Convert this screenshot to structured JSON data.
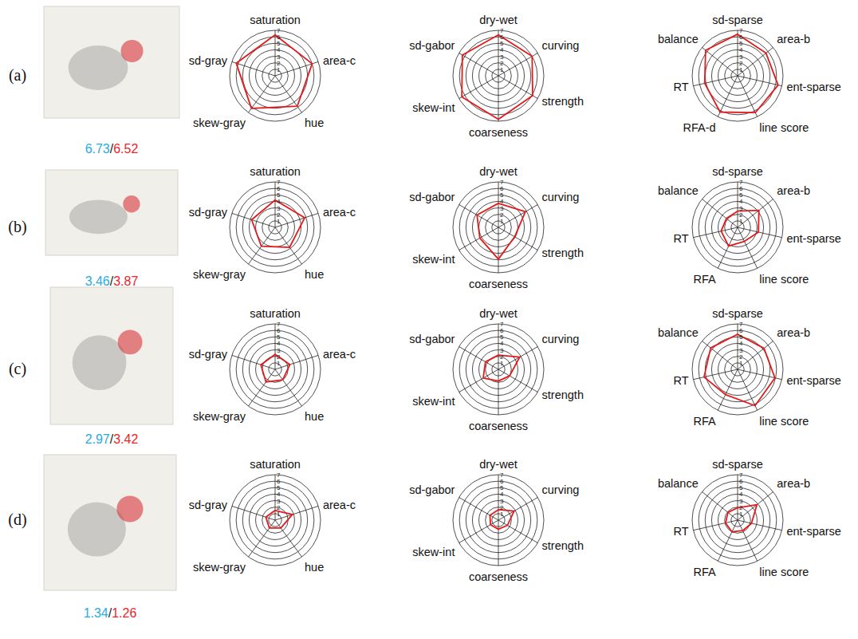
{
  "chart_data": [
    {
      "type": "radar",
      "categories": [
        "saturation",
        "area-c",
        "hue",
        "skew-gray",
        "sd-gray"
      ],
      "values": [
        6.3,
        6.0,
        5.8,
        6.2,
        6.3
      ],
      "color": "#e31a1c",
      "ylim": [
        0,
        7
      ],
      "yticks": [
        1,
        2,
        3,
        4,
        5,
        6,
        7
      ]
    },
    {
      "type": "radar",
      "categories": [
        "dry-wet",
        "curving",
        "strength",
        "coarseness",
        "skew-int",
        "sd-gabor"
      ],
      "values": [
        6.3,
        6.0,
        6.1,
        6.7,
        6.5,
        6.4
      ],
      "color": "#e31a1c",
      "ylim": [
        0,
        7
      ],
      "yticks": [
        1,
        2,
        3,
        4,
        5,
        6,
        7
      ]
    },
    {
      "type": "radar",
      "categories": [
        "sd-sparse",
        "area-b",
        "ent-sparse",
        "line score",
        "RFA-d",
        "RT",
        "balance"
      ],
      "values": [
        6.4,
        5.6,
        6.4,
        6.3,
        6.2,
        5.2,
        6.3
      ],
      "color": "#e31a1c",
      "ylim": [
        0,
        7
      ],
      "yticks": [
        1,
        2,
        3,
        4,
        5,
        6,
        7
      ]
    },
    {
      "type": "radar",
      "categories": [
        "saturation",
        "area-c",
        "hue",
        "skew-gray",
        "sd-gray"
      ],
      "values": [
        4.2,
        4.8,
        3.8,
        3.6,
        3.8
      ],
      "color": "#e31a1c",
      "ylim": [
        0,
        7
      ],
      "yticks": [
        1,
        2,
        3,
        4,
        5,
        6,
        7
      ]
    },
    {
      "type": "radar",
      "categories": [
        "dry-wet",
        "curving",
        "strength",
        "coarseness",
        "skew-int",
        "sd-gabor"
      ],
      "values": [
        3.7,
        4.8,
        2.9,
        4.9,
        3.3,
        3.8
      ],
      "color": "#e31a1c",
      "ylim": [
        0,
        7
      ],
      "yticks": [
        1,
        2,
        3,
        4,
        5,
        6,
        7
      ]
    },
    {
      "type": "radar",
      "categories": [
        "sd-sparse",
        "area-b",
        "ent-sparse",
        "line score",
        "RFA",
        "RT",
        "balance"
      ],
      "values": [
        2.5,
        4.2,
        3.3,
        2.4,
        3.2,
        2.6,
        2.2
      ],
      "color": "#e31a1c",
      "ylim": [
        0,
        7
      ],
      "yticks": [
        1,
        2,
        3,
        4,
        5,
        6,
        7
      ]
    },
    {
      "type": "radar",
      "categories": [
        "saturation",
        "area-c",
        "hue",
        "skew-gray",
        "sd-gray"
      ],
      "values": [
        2.3,
        2.4,
        2.0,
        2.4,
        2.3
      ],
      "color": "#e31a1c",
      "ylim": [
        0,
        7
      ],
      "yticks": [
        1,
        2,
        3,
        4,
        5,
        6,
        7
      ]
    },
    {
      "type": "radar",
      "categories": [
        "dry-wet",
        "curving",
        "strength",
        "coarseness",
        "skew-int",
        "sd-gabor"
      ],
      "values": [
        2.2,
        3.8,
        2.0,
        1.8,
        2.7,
        2.3
      ],
      "color": "#e31a1c",
      "ylim": [
        0,
        7
      ],
      "yticks": [
        1,
        2,
        3,
        4,
        5,
        6,
        7
      ]
    },
    {
      "type": "radar",
      "categories": [
        "sd-sparse",
        "area-b",
        "ent-sparse",
        "line score",
        "RFA",
        "RT",
        "balance"
      ],
      "values": [
        5.4,
        5.2,
        5.9,
        6.2,
        4.3,
        5.3,
        5.3
      ],
      "color": "#e31a1c",
      "ylim": [
        0,
        7
      ],
      "yticks": [
        1,
        2,
        3,
        4,
        5,
        6,
        7
      ]
    },
    {
      "type": "radar",
      "categories": [
        "saturation",
        "area-c",
        "hue",
        "skew-gray",
        "sd-gray"
      ],
      "values": [
        1.5,
        2.8,
        1.5,
        1.5,
        1.5
      ],
      "color": "#e31a1c",
      "ylim": [
        0,
        7
      ],
      "yticks": [
        1,
        2,
        3,
        4,
        5,
        6,
        7
      ]
    },
    {
      "type": "radar",
      "categories": [
        "dry-wet",
        "curving",
        "strength",
        "coarseness",
        "skew-int",
        "sd-gabor"
      ],
      "values": [
        1.6,
        2.8,
        1.6,
        1.4,
        1.4,
        1.5
      ],
      "color": "#e31a1c",
      "ylim": [
        0,
        7
      ],
      "yticks": [
        1,
        2,
        3,
        4,
        5,
        6,
        7
      ]
    },
    {
      "type": "radar",
      "categories": [
        "sd-sparse",
        "area-b",
        "ent-sparse",
        "line score",
        "RFA",
        "RT",
        "balance"
      ],
      "values": [
        1.9,
        3.8,
        2.2,
        1.8,
        2.0,
        1.9,
        1.9
      ],
      "color": "#e31a1c",
      "ylim": [
        0,
        7
      ],
      "yticks": [
        1,
        2,
        3,
        4,
        5,
        6,
        7
      ]
    }
  ],
  "score_separator": "/",
  "panels": [
    {
      "label": "(a)",
      "scores": [
        {
          "value": 6.73,
          "color": "#29abe2"
        },
        {
          "value": 6.52,
          "color": "#e8262b"
        }
      ]
    },
    {
      "label": "(b)",
      "scores": [
        {
          "value": 3.46,
          "color": "#29abe2"
        },
        {
          "value": 3.87,
          "color": "#e8262b"
        }
      ]
    },
    {
      "label": "(c)",
      "scores": [
        {
          "value": 2.97,
          "color": "#29abe2"
        },
        {
          "value": 3.42,
          "color": "#e8262b"
        }
      ]
    },
    {
      "label": "(d)",
      "scores": [
        {
          "value": 1.34,
          "color": "#29abe2"
        },
        {
          "value": 1.26,
          "color": "#e8262b"
        }
      ]
    }
  ]
}
